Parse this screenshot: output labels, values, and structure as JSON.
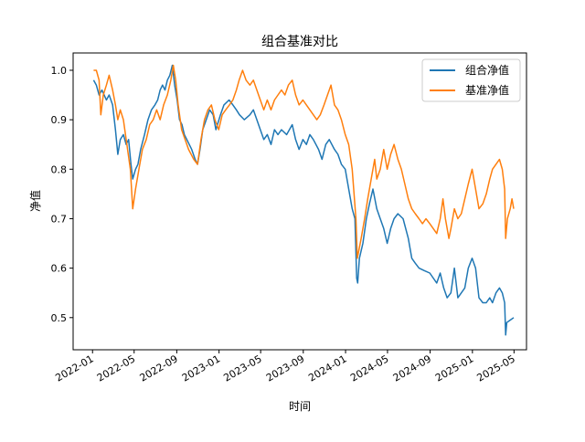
{
  "chart_data": {
    "type": "line",
    "title": "组合基准对比",
    "xlabel": "时间",
    "ylabel": "净值",
    "x_ticks": [
      "2022-01",
      "2022-05",
      "2022-09",
      "2023-01",
      "2023-05",
      "2023-09",
      "2024-01",
      "2024-05",
      "2024-09",
      "2025-01",
      "2025-05"
    ],
    "y_ticks": [
      "0.5",
      "0.6",
      "0.7",
      "0.8",
      "0.9",
      "1.0"
    ],
    "xlim": [
      "2021-11-06",
      "2025-06-06"
    ],
    "ylim": [
      0.435,
      1.035
    ],
    "grid": false,
    "legend": "top-right",
    "series": [
      {
        "name": "组合净值",
        "color": "#1f77b4",
        "points": [
          [
            "2022-01-04",
            0.98
          ],
          [
            "2022-01-12",
            0.97
          ],
          [
            "2022-01-20",
            0.95
          ],
          [
            "2022-01-28",
            0.96
          ],
          [
            "2022-02-10",
            0.94
          ],
          [
            "2022-02-18",
            0.95
          ],
          [
            "2022-02-28",
            0.93
          ],
          [
            "2022-03-08",
            0.88
          ],
          [
            "2022-03-15",
            0.83
          ],
          [
            "2022-03-22",
            0.86
          ],
          [
            "2022-03-31",
            0.87
          ],
          [
            "2022-04-08",
            0.85
          ],
          [
            "2022-04-15",
            0.86
          ],
          [
            "2022-04-22",
            0.81
          ],
          [
            "2022-04-27",
            0.78
          ],
          [
            "2022-05-05",
            0.8
          ],
          [
            "2022-05-12",
            0.81
          ],
          [
            "2022-05-20",
            0.84
          ],
          [
            "2022-05-31",
            0.87
          ],
          [
            "2022-06-10",
            0.9
          ],
          [
            "2022-06-20",
            0.92
          ],
          [
            "2022-06-30",
            0.93
          ],
          [
            "2022-07-08",
            0.94
          ],
          [
            "2022-07-15",
            0.96
          ],
          [
            "2022-07-22",
            0.97
          ],
          [
            "2022-07-29",
            0.96
          ],
          [
            "2022-08-05",
            0.98
          ],
          [
            "2022-08-12",
            0.99
          ],
          [
            "2022-08-19",
            1.01
          ],
          [
            "2022-08-26",
            0.97
          ],
          [
            "2022-09-02",
            0.94
          ],
          [
            "2022-09-09",
            0.9
          ],
          [
            "2022-09-16",
            0.89
          ],
          [
            "2022-09-23",
            0.87
          ],
          [
            "2022-09-30",
            0.86
          ],
          [
            "2022-10-14",
            0.84
          ],
          [
            "2022-10-24",
            0.82
          ],
          [
            "2022-10-31",
            0.81
          ],
          [
            "2022-11-07",
            0.84
          ],
          [
            "2022-11-15",
            0.88
          ],
          [
            "2022-11-25",
            0.9
          ],
          [
            "2022-12-05",
            0.92
          ],
          [
            "2022-12-15",
            0.91
          ],
          [
            "2022-12-23",
            0.88
          ],
          [
            "2023-01-05",
            0.91
          ],
          [
            "2023-01-15",
            0.93
          ],
          [
            "2023-01-30",
            0.94
          ],
          [
            "2023-02-10",
            0.93
          ],
          [
            "2023-02-20",
            0.92
          ],
          [
            "2023-03-01",
            0.91
          ],
          [
            "2023-03-15",
            0.9
          ],
          [
            "2023-03-31",
            0.91
          ],
          [
            "2023-04-10",
            0.92
          ],
          [
            "2023-04-20",
            0.9
          ],
          [
            "2023-04-30",
            0.88
          ],
          [
            "2023-05-10",
            0.86
          ],
          [
            "2023-05-20",
            0.87
          ],
          [
            "2023-05-31",
            0.85
          ],
          [
            "2023-06-10",
            0.88
          ],
          [
            "2023-06-20",
            0.87
          ],
          [
            "2023-06-30",
            0.88
          ],
          [
            "2023-07-15",
            0.87
          ],
          [
            "2023-07-31",
            0.89
          ],
          [
            "2023-08-10",
            0.86
          ],
          [
            "2023-08-20",
            0.84
          ],
          [
            "2023-08-31",
            0.86
          ],
          [
            "2023-09-10",
            0.85
          ],
          [
            "2023-09-20",
            0.87
          ],
          [
            "2023-09-30",
            0.86
          ],
          [
            "2023-10-15",
            0.84
          ],
          [
            "2023-10-25",
            0.82
          ],
          [
            "2023-11-05",
            0.85
          ],
          [
            "2023-11-15",
            0.86
          ],
          [
            "2023-11-30",
            0.84
          ],
          [
            "2023-12-10",
            0.83
          ],
          [
            "2023-12-20",
            0.81
          ],
          [
            "2023-12-31",
            0.8
          ],
          [
            "2024-01-10",
            0.76
          ],
          [
            "2024-01-20",
            0.72
          ],
          [
            "2024-01-28",
            0.7
          ],
          [
            "2024-02-02",
            0.58
          ],
          [
            "2024-02-05",
            0.57
          ],
          [
            "2024-02-10",
            0.62
          ],
          [
            "2024-02-20",
            0.65
          ],
          [
            "2024-03-01",
            0.7
          ],
          [
            "2024-03-10",
            0.73
          ],
          [
            "2024-03-20",
            0.76
          ],
          [
            "2024-03-31",
            0.72
          ],
          [
            "2024-04-10",
            0.7
          ],
          [
            "2024-04-20",
            0.68
          ],
          [
            "2024-04-30",
            0.65
          ],
          [
            "2024-05-10",
            0.68
          ],
          [
            "2024-05-20",
            0.7
          ],
          [
            "2024-05-31",
            0.71
          ],
          [
            "2024-06-15",
            0.7
          ],
          [
            "2024-06-30",
            0.66
          ],
          [
            "2024-07-10",
            0.62
          ],
          [
            "2024-07-20",
            0.61
          ],
          [
            "2024-07-31",
            0.6
          ],
          [
            "2024-08-15",
            0.595
          ],
          [
            "2024-08-31",
            0.59
          ],
          [
            "2024-09-10",
            0.58
          ],
          [
            "2024-09-20",
            0.57
          ],
          [
            "2024-09-30",
            0.59
          ],
          [
            "2024-10-10",
            0.56
          ],
          [
            "2024-10-20",
            0.54
          ],
          [
            "2024-10-31",
            0.55
          ],
          [
            "2024-11-10",
            0.6
          ],
          [
            "2024-11-20",
            0.54
          ],
          [
            "2024-11-30",
            0.55
          ],
          [
            "2024-12-10",
            0.56
          ],
          [
            "2024-12-20",
            0.6
          ],
          [
            "2024-12-31",
            0.62
          ],
          [
            "2025-01-10",
            0.6
          ],
          [
            "2025-01-20",
            0.54
          ],
          [
            "2025-01-31",
            0.53
          ],
          [
            "2025-02-10",
            0.53
          ],
          [
            "2025-02-20",
            0.54
          ],
          [
            "2025-02-28",
            0.53
          ],
          [
            "2025-03-10",
            0.55
          ],
          [
            "2025-03-20",
            0.56
          ],
          [
            "2025-03-28",
            0.55
          ],
          [
            "2025-04-04",
            0.53
          ],
          [
            "2025-04-07",
            0.465
          ],
          [
            "2025-04-10",
            0.49
          ],
          [
            "2025-04-20",
            0.495
          ],
          [
            "2025-04-30",
            0.5
          ]
        ]
      },
      {
        "name": "基准净值",
        "color": "#ff7f0e",
        "points": [
          [
            "2022-01-04",
            1.0
          ],
          [
            "2022-01-12",
            1.0
          ],
          [
            "2022-01-20",
            0.98
          ],
          [
            "2022-01-25",
            0.91
          ],
          [
            "2022-02-01",
            0.95
          ],
          [
            "2022-02-10",
            0.97
          ],
          [
            "2022-02-18",
            0.99
          ],
          [
            "2022-02-28",
            0.96
          ],
          [
            "2022-03-08",
            0.93
          ],
          [
            "2022-03-15",
            0.9
          ],
          [
            "2022-03-22",
            0.92
          ],
          [
            "2022-03-31",
            0.9
          ],
          [
            "2022-04-10",
            0.85
          ],
          [
            "2022-04-20",
            0.8
          ],
          [
            "2022-04-27",
            0.72
          ],
          [
            "2022-05-05",
            0.76
          ],
          [
            "2022-05-15",
            0.8
          ],
          [
            "2022-05-25",
            0.84
          ],
          [
            "2022-06-05",
            0.86
          ],
          [
            "2022-06-15",
            0.89
          ],
          [
            "2022-06-25",
            0.9
          ],
          [
            "2022-07-05",
            0.92
          ],
          [
            "2022-07-15",
            0.9
          ],
          [
            "2022-07-25",
            0.93
          ],
          [
            "2022-08-05",
            0.95
          ],
          [
            "2022-08-15",
            0.98
          ],
          [
            "2022-08-22",
            1.01
          ],
          [
            "2022-08-29",
            0.98
          ],
          [
            "2022-09-05",
            0.93
          ],
          [
            "2022-09-15",
            0.88
          ],
          [
            "2022-09-25",
            0.86
          ],
          [
            "2022-10-05",
            0.84
          ],
          [
            "2022-10-20",
            0.82
          ],
          [
            "2022-10-31",
            0.81
          ],
          [
            "2022-11-10",
            0.86
          ],
          [
            "2022-11-20",
            0.9
          ],
          [
            "2022-11-30",
            0.92
          ],
          [
            "2022-12-10",
            0.93
          ],
          [
            "2022-12-20",
            0.9
          ],
          [
            "2022-12-31",
            0.88
          ],
          [
            "2023-01-10",
            0.91
          ],
          [
            "2023-01-20",
            0.92
          ],
          [
            "2023-01-31",
            0.93
          ],
          [
            "2023-02-10",
            0.94
          ],
          [
            "2023-02-20",
            0.96
          ],
          [
            "2023-02-28",
            0.98
          ],
          [
            "2023-03-10",
            1.0
          ],
          [
            "2023-03-20",
            0.98
          ],
          [
            "2023-03-31",
            0.97
          ],
          [
            "2023-04-10",
            0.98
          ],
          [
            "2023-04-20",
            0.96
          ],
          [
            "2023-04-30",
            0.94
          ],
          [
            "2023-05-10",
            0.92
          ],
          [
            "2023-05-20",
            0.94
          ],
          [
            "2023-05-31",
            0.92
          ],
          [
            "2023-06-10",
            0.94
          ],
          [
            "2023-06-20",
            0.95
          ],
          [
            "2023-06-30",
            0.96
          ],
          [
            "2023-07-10",
            0.95
          ],
          [
            "2023-07-20",
            0.97
          ],
          [
            "2023-07-31",
            0.98
          ],
          [
            "2023-08-10",
            0.95
          ],
          [
            "2023-08-20",
            0.93
          ],
          [
            "2023-08-31",
            0.94
          ],
          [
            "2023-09-10",
            0.93
          ],
          [
            "2023-09-20",
            0.92
          ],
          [
            "2023-09-30",
            0.91
          ],
          [
            "2023-10-10",
            0.9
          ],
          [
            "2023-10-20",
            0.91
          ],
          [
            "2023-10-31",
            0.93
          ],
          [
            "2023-11-10",
            0.95
          ],
          [
            "2023-11-20",
            0.97
          ],
          [
            "2023-11-30",
            0.93
          ],
          [
            "2023-12-10",
            0.92
          ],
          [
            "2023-12-20",
            0.9
          ],
          [
            "2023-12-31",
            0.87
          ],
          [
            "2024-01-10",
            0.85
          ],
          [
            "2024-01-20",
            0.8
          ],
          [
            "2024-01-31",
            0.7
          ],
          [
            "2024-02-04",
            0.62
          ],
          [
            "2024-02-15",
            0.66
          ],
          [
            "2024-02-25",
            0.7
          ],
          [
            "2024-03-05",
            0.74
          ],
          [
            "2024-03-15",
            0.78
          ],
          [
            "2024-03-25",
            0.82
          ],
          [
            "2024-03-31",
            0.78
          ],
          [
            "2024-04-10",
            0.8
          ],
          [
            "2024-04-20",
            0.84
          ],
          [
            "2024-04-30",
            0.8
          ],
          [
            "2024-05-10",
            0.83
          ],
          [
            "2024-05-20",
            0.85
          ],
          [
            "2024-05-31",
            0.82
          ],
          [
            "2024-06-10",
            0.8
          ],
          [
            "2024-06-20",
            0.77
          ],
          [
            "2024-06-30",
            0.74
          ],
          [
            "2024-07-10",
            0.72
          ],
          [
            "2024-07-20",
            0.71
          ],
          [
            "2024-07-31",
            0.7
          ],
          [
            "2024-08-10",
            0.69
          ],
          [
            "2024-08-20",
            0.7
          ],
          [
            "2024-08-31",
            0.69
          ],
          [
            "2024-09-10",
            0.68
          ],
          [
            "2024-09-20",
            0.67
          ],
          [
            "2024-09-30",
            0.7
          ],
          [
            "2024-10-08",
            0.74
          ],
          [
            "2024-10-15",
            0.7
          ],
          [
            "2024-10-25",
            0.66
          ],
          [
            "2024-10-31",
            0.68
          ],
          [
            "2024-11-10",
            0.72
          ],
          [
            "2024-11-20",
            0.7
          ],
          [
            "2024-11-30",
            0.71
          ],
          [
            "2024-12-10",
            0.74
          ],
          [
            "2024-12-20",
            0.77
          ],
          [
            "2024-12-31",
            0.8
          ],
          [
            "2025-01-10",
            0.76
          ],
          [
            "2025-01-20",
            0.72
          ],
          [
            "2025-01-31",
            0.73
          ],
          [
            "2025-02-10",
            0.75
          ],
          [
            "2025-02-20",
            0.78
          ],
          [
            "2025-02-28",
            0.8
          ],
          [
            "2025-03-10",
            0.81
          ],
          [
            "2025-03-20",
            0.82
          ],
          [
            "2025-03-28",
            0.8
          ],
          [
            "2025-04-04",
            0.76
          ],
          [
            "2025-04-07",
            0.66
          ],
          [
            "2025-04-12",
            0.7
          ],
          [
            "2025-04-20",
            0.72
          ],
          [
            "2025-04-25",
            0.74
          ],
          [
            "2025-04-30",
            0.72
          ]
        ]
      }
    ]
  }
}
